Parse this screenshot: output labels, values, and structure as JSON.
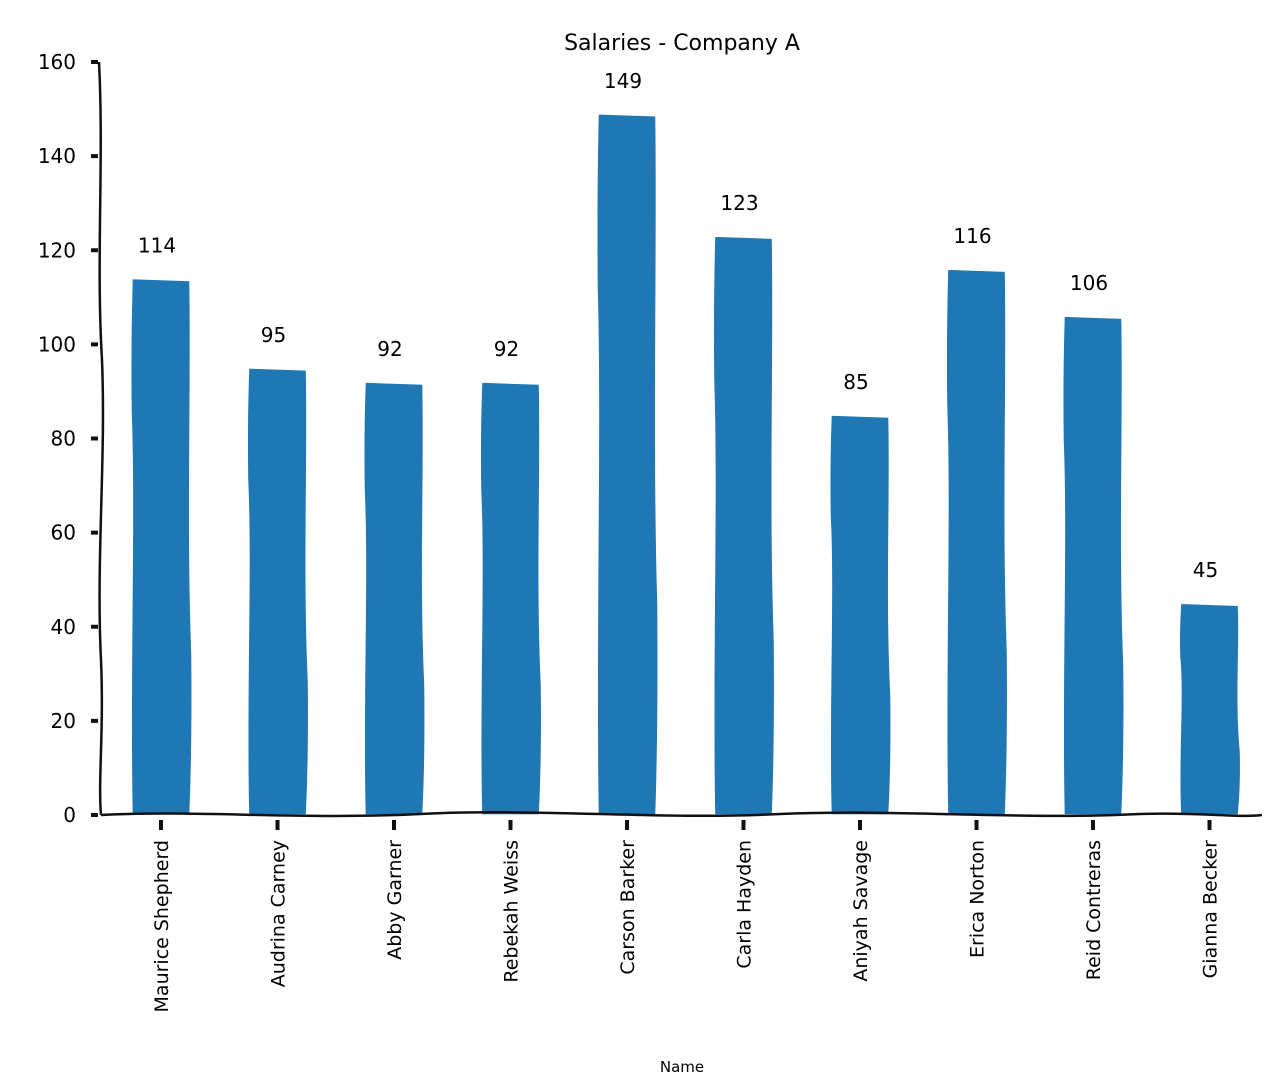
{
  "chart_data": {
    "type": "bar",
    "title": "Salaries - Company A",
    "xlabel": "Name",
    "ylabel": "",
    "ylim": [
      0,
      160
    ],
    "yticks": [
      0,
      20,
      40,
      60,
      80,
      100,
      120,
      140,
      160
    ],
    "grid": false,
    "legend": null,
    "style": "xkcd",
    "bar_color": "#1f77b4",
    "categories": [
      "Maurice Shepherd",
      "Audrina Carney",
      "Abby Garner",
      "Rebekah Weiss",
      "Carson Barker",
      "Carla Hayden",
      "Aniyah Savage",
      "Erica Norton",
      "Reid Contreras",
      "Gianna Becker"
    ],
    "values": [
      114,
      95,
      92,
      92,
      149,
      123,
      85,
      116,
      106,
      45
    ],
    "data_labels": [
      "114",
      "95",
      "92",
      "92",
      "149",
      "123",
      "85",
      "116",
      "106",
      "45"
    ]
  }
}
